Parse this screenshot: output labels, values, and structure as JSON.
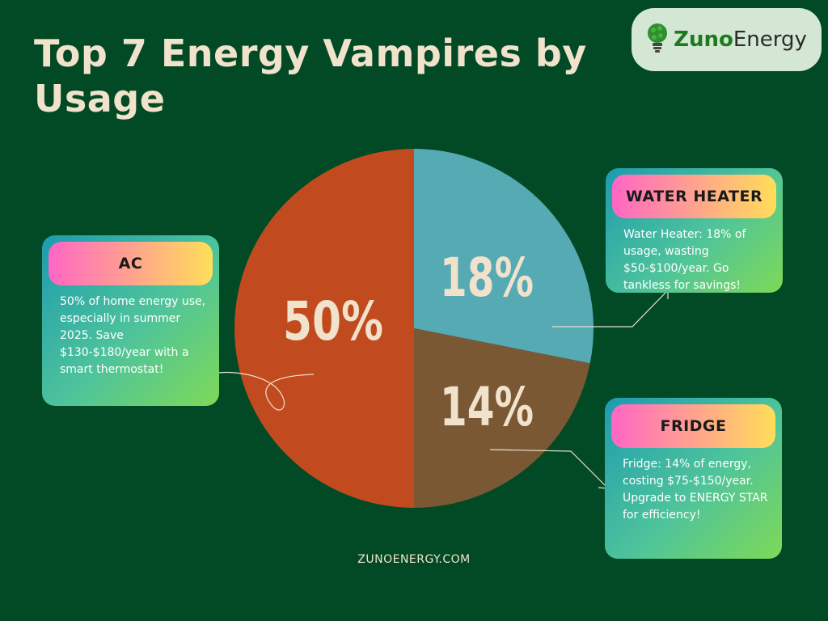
{
  "title": "Top 7 Energy Vampires by Usage",
  "logo": {
    "name_part1": "Zuno",
    "name_part2": "Energy",
    "icon": "lightbulb-icon"
  },
  "footer": "ZUNOENERGY.COM",
  "colors": {
    "background": "#014a25",
    "ac": "#c24a1f",
    "water_heater": "#55aab3",
    "fridge": "#7a5834",
    "label": "#f1e2cc"
  },
  "chart_data": {
    "type": "pie",
    "slices": [
      {
        "label": "AC",
        "value": 50,
        "display": "50%",
        "color": "#c24a1f"
      },
      {
        "label": "WATER HEATER",
        "value": 18,
        "display": "18%",
        "color": "#55aab3"
      },
      {
        "label": "FRIDGE",
        "value": 14,
        "display": "14%",
        "color": "#7a5834"
      }
    ]
  },
  "callouts": {
    "ac": {
      "heading": "AC",
      "text": "50% of home energy use, especially in summer 2025. Save $130-$180/year with a smart thermostat!"
    },
    "water_heater": {
      "heading": "WATER HEATER",
      "text": "Water Heater: 18% of usage, wasting $50-$100/year. Go tankless for savings!"
    },
    "fridge": {
      "heading": "FRIDGE",
      "text": "Fridge: 14% of energy, costing $75-$150/year. Upgrade to ENERGY STAR for efficiency!"
    }
  }
}
